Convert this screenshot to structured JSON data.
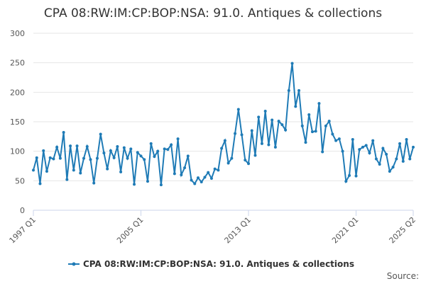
{
  "chart_data": {
    "type": "line",
    "title": "CPA 08:RW:IM:CP:BOP:NSA: 91.0. Antiques & collections",
    "categories": [
      "1997 Q1",
      null,
      null,
      null,
      null,
      null,
      null,
      null,
      null,
      null,
      null,
      null,
      null,
      null,
      null,
      null,
      null,
      null,
      null,
      null,
      null,
      null,
      null,
      null,
      null,
      null,
      null,
      null,
      null,
      null,
      null,
      null,
      "2005 Q1",
      null,
      null,
      null,
      null,
      null,
      null,
      null,
      null,
      null,
      null,
      null,
      null,
      null,
      null,
      null,
      null,
      null,
      null,
      null,
      null,
      null,
      null,
      null,
      null,
      null,
      null,
      null,
      null,
      null,
      null,
      null,
      "2013 Q1",
      null,
      null,
      null,
      null,
      null,
      null,
      null,
      null,
      null,
      null,
      null,
      null,
      null,
      null,
      null,
      null,
      null,
      null,
      null,
      null,
      null,
      null,
      null,
      null,
      null,
      null,
      null,
      null,
      null,
      null,
      null,
      "2021 Q1",
      null,
      null,
      null,
      null,
      null,
      null,
      null,
      null,
      null,
      null,
      null,
      null,
      null,
      null,
      null,
      null,
      "2025 Q2"
    ],
    "series": [
      {
        "name": "CPA 08:RW:IM:CP:BOP:NSA: 91.0. Antiques & collections",
        "color": "#1f7bb6",
        "values": [
          68,
          89,
          45,
          101,
          66,
          89,
          87,
          107,
          88,
          132,
          52,
          109,
          68,
          109,
          63,
          88,
          108,
          86,
          46,
          88,
          129,
          97,
          70,
          101,
          89,
          108,
          65,
          106,
          88,
          104,
          44,
          98,
          92,
          86,
          49,
          113,
          91,
          100,
          43,
          104,
          103,
          111,
          62,
          121,
          60,
          72,
          92,
          51,
          45,
          55,
          48,
          56,
          64,
          54,
          70,
          68,
          105,
          118,
          80,
          88,
          130,
          171,
          128,
          85,
          79,
          135,
          93,
          158,
          113,
          168,
          111,
          153,
          107,
          151,
          145,
          136,
          203,
          249,
          176,
          203,
          143,
          115,
          162,
          133,
          134,
          181,
          99,
          143,
          151,
          129,
          118,
          121,
          100,
          49,
          59,
          120,
          58,
          103,
          107,
          110,
          97,
          118,
          87,
          78,
          105,
          95,
          66,
          73,
          87,
          113,
          83,
          120,
          87,
          107
        ]
      }
    ],
    "ylim": [
      0,
      300
    ],
    "yticks": [
      0,
      50,
      100,
      150,
      200,
      250,
      300
    ],
    "grid": true,
    "source_label": "Source:"
  }
}
